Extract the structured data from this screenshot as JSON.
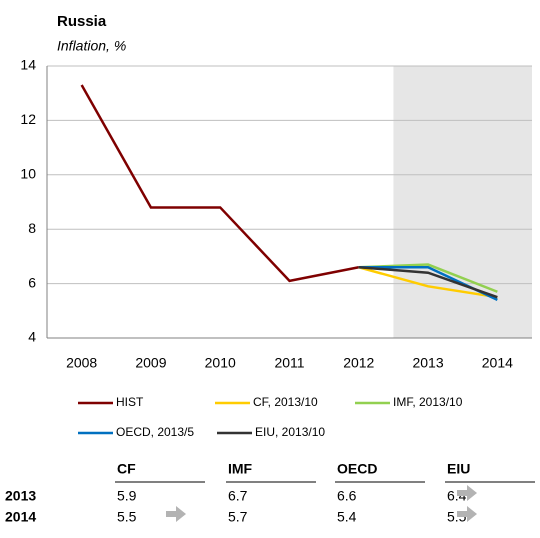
{
  "chart_data": {
    "type": "line",
    "title": "Russia",
    "subtitle": "Inflation, %",
    "categories": [
      "2008",
      "2009",
      "2010",
      "2011",
      "2012",
      "2013",
      "2014"
    ],
    "series": [
      {
        "name": "HIST",
        "color": "#7f0000",
        "values": [
          13.3,
          8.8,
          8.8,
          6.1,
          6.6,
          null,
          null
        ]
      },
      {
        "name": "CF, 2013/10",
        "color": "#ffcc00",
        "values": [
          null,
          null,
          null,
          null,
          6.6,
          5.9,
          5.5
        ]
      },
      {
        "name": "IMF, 2013/10",
        "color": "#92d050",
        "values": [
          null,
          null,
          null,
          null,
          6.6,
          6.7,
          5.7
        ]
      },
      {
        "name": "OECD, 2013/5",
        "color": "#0070c0",
        "values": [
          null,
          null,
          null,
          null,
          6.6,
          6.6,
          5.4
        ]
      },
      {
        "name": "EIU, 2013/10",
        "color": "#333333",
        "values": [
          null,
          null,
          null,
          null,
          6.6,
          6.4,
          5.5
        ]
      }
    ],
    "ylim": [
      4,
      14
    ],
    "yticks": [
      4,
      6,
      8,
      10,
      12,
      14
    ],
    "grid": true
  },
  "table": {
    "columns": [
      "CF",
      "IMF",
      "OECD",
      "EIU"
    ],
    "rows": [
      {
        "label": "2013",
        "values": [
          5.9,
          6.7,
          6.6,
          6.4
        ]
      },
      {
        "label": "2014",
        "values": [
          5.5,
          5.7,
          5.4,
          5.5
        ]
      }
    ]
  }
}
